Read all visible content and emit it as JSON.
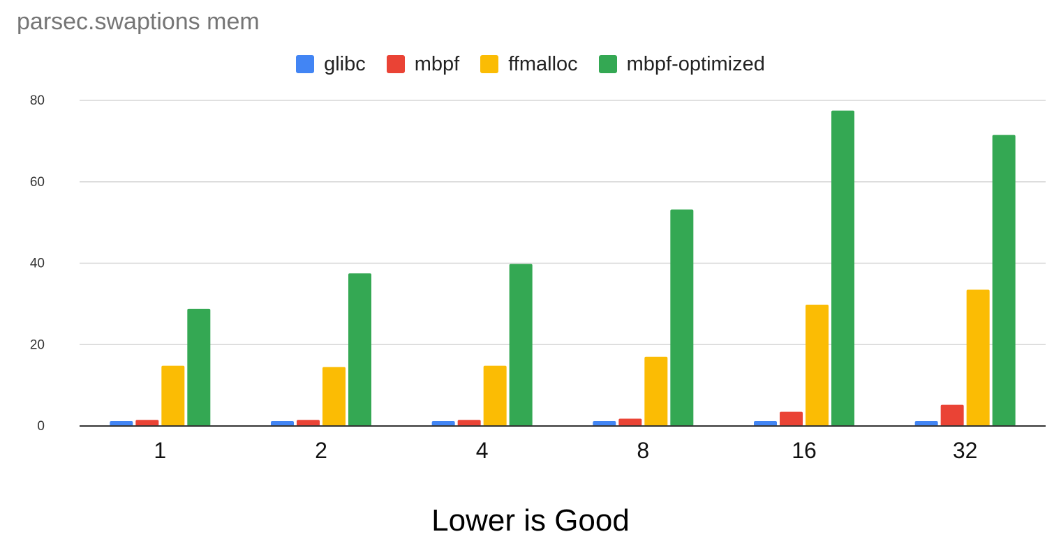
{
  "chart_data": {
    "type": "bar",
    "title": "parsec.swaptions mem",
    "xlabel": "",
    "ylabel": "",
    "categories": [
      "1",
      "2",
      "4",
      "8",
      "16",
      "32"
    ],
    "series": [
      {
        "name": "glibc",
        "color": "#4285F4",
        "values": [
          1.2,
          1.2,
          1.2,
          1.2,
          1.2,
          1.2
        ]
      },
      {
        "name": "mbpf",
        "color": "#EA4335",
        "values": [
          1.5,
          1.5,
          1.5,
          1.8,
          3.5,
          5.2
        ]
      },
      {
        "name": "ffmalloc",
        "color": "#FBBC04",
        "values": [
          14.8,
          14.5,
          14.8,
          17.0,
          29.8,
          33.5
        ]
      },
      {
        "name": "mbpf-optimized",
        "color": "#34A853",
        "values": [
          28.8,
          37.5,
          39.8,
          53.2,
          77.5,
          71.5
        ]
      }
    ],
    "ylim": [
      0,
      80
    ],
    "yticks": [
      0,
      20,
      40,
      60,
      80
    ],
    "grid": true,
    "legend_position": "top"
  },
  "footer": {
    "text": "Lower is Good"
  }
}
